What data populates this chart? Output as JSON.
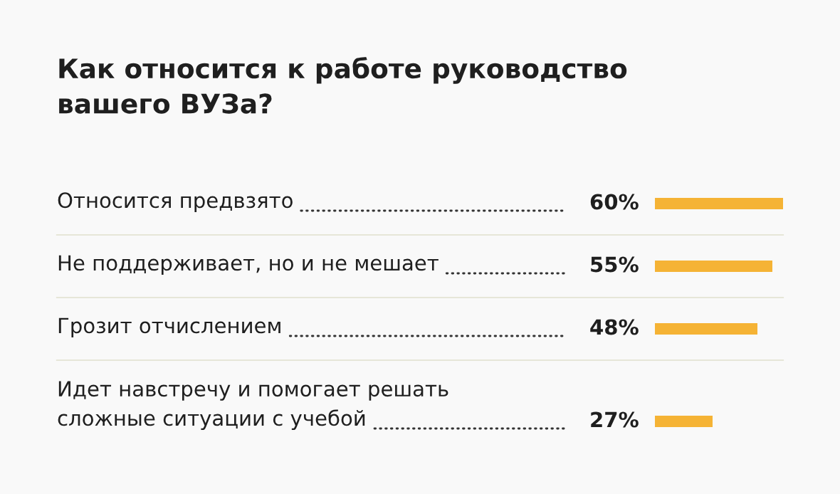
{
  "chart_data": {
    "type": "bar",
    "orientation": "horizontal",
    "title": "Как относится к работе руководство\nвашего ВУЗа?",
    "categories": [
      "Относится предвзято",
      "Не поддерживает, но и не мешает",
      "Грозит отчислением",
      "Идет навстречу и помогает решать\nсложные ситуации с учебой"
    ],
    "values": [
      60,
      55,
      48,
      27
    ],
    "value_labels": [
      "60%",
      "55%",
      "48%",
      "27%"
    ],
    "color": "#f5b335"
  }
}
